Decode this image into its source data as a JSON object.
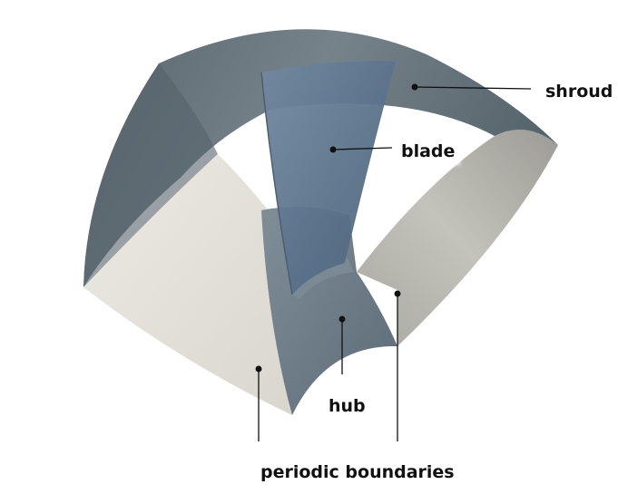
{
  "labels": {
    "shroud": "shroud",
    "blade": "blade",
    "hub": "hub",
    "periodic": "periodic boundaries"
  },
  "colors": {
    "shroud": "#6b7880",
    "blade": "#5d7689",
    "hub": "#6a7a86",
    "periodic_left": "#e4e1d8",
    "periodic_right": "#b4b3ac",
    "leader": "#111111"
  }
}
